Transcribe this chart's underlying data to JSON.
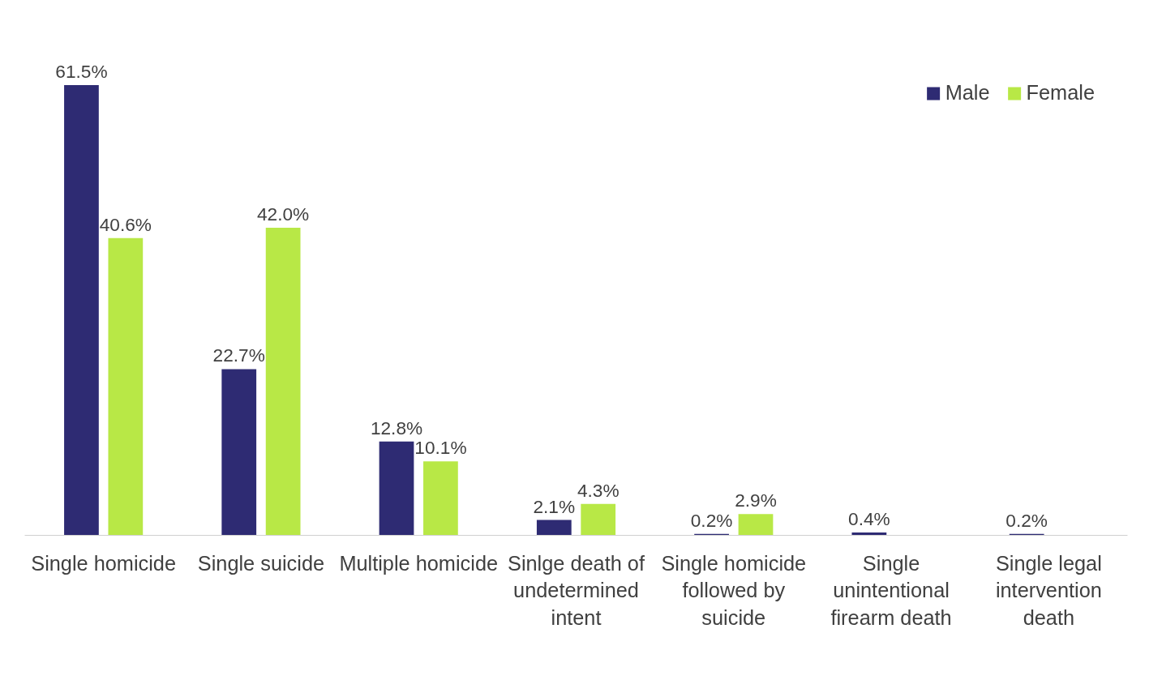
{
  "chart_data": {
    "type": "bar",
    "categories": [
      "Single homicide",
      "Single suicide",
      "Multiple homicide",
      "Sinlge death of undetermined intent",
      "Single homicide followed by suicide",
      "Single unintentional firearm death",
      "Single legal intervention death"
    ],
    "series": [
      {
        "name": "Male",
        "color": "#2e2b73",
        "values": [
          61.5,
          22.7,
          12.8,
          2.1,
          0.2,
          0.4,
          0.2
        ],
        "value_labels": [
          "61.5%",
          "22.7%",
          "12.8%",
          "2.1%",
          "0.2%",
          "0.4%",
          "0.2%"
        ]
      },
      {
        "name": "Female",
        "color": "#b8e846",
        "values": [
          40.6,
          42.0,
          10.1,
          4.3,
          2.9,
          null,
          null
        ],
        "value_labels": [
          "40.6%",
          "42.0%",
          "10.1%",
          "4.3%",
          "2.9%",
          null,
          null
        ]
      }
    ],
    "legend": "top right",
    "grid": false
  }
}
